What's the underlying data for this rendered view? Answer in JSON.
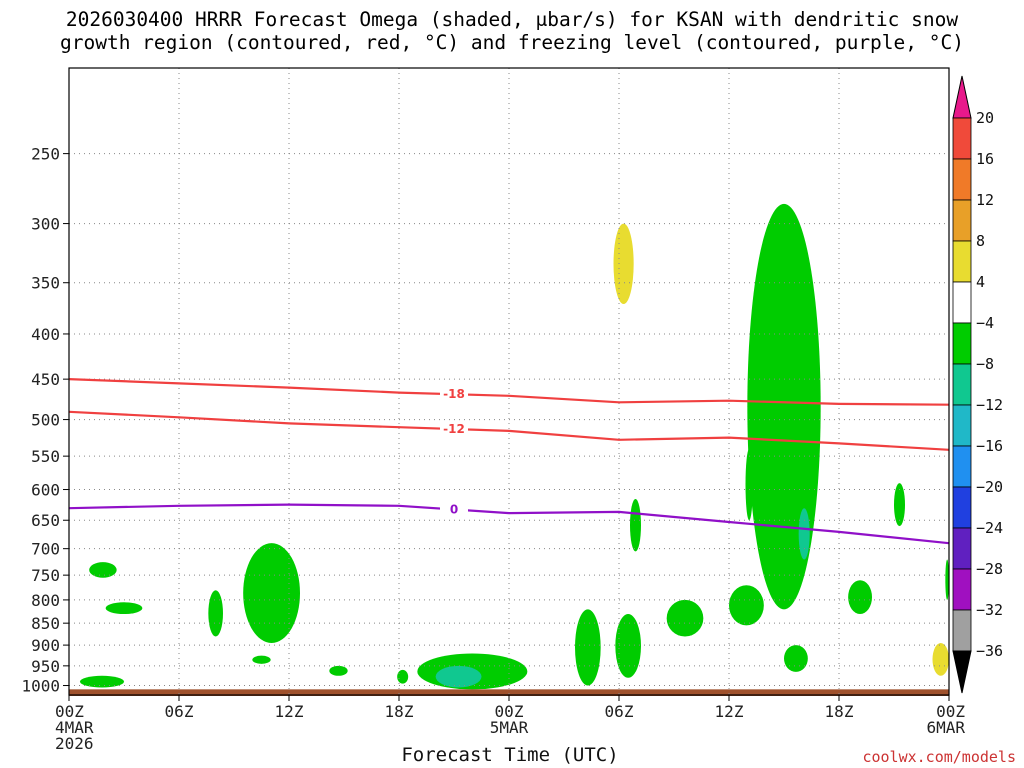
{
  "title_line1": "2026030400 HRRR Forecast Omega (shaded, μbar/s) for KSAN with dendritic snow",
  "title_line2": "growth region (contoured, red, °C) and freezing level (contoured, purple, °C)",
  "credit": "coolwx.com/models",
  "chart_data": {
    "type": "heatmap",
    "title": "2026030400 HRRR Forecast Omega (shaded, μbar/s) for KSAN with dendritic snow growth region (contoured, red, °C) and freezing level (contoured, purple, °C)",
    "xlabel": "Forecast Time (UTC)",
    "ylabel": "",
    "x_unit": "hours from 00Z 4MAR2026",
    "xlim": [
      0,
      48
    ],
    "ylim_hPa": [
      1025,
      200
    ],
    "grid": true,
    "x_ticks": [
      {
        "x": 0,
        "labels": [
          "00Z",
          "4MAR",
          "2026"
        ]
      },
      {
        "x": 6,
        "labels": [
          "06Z"
        ]
      },
      {
        "x": 12,
        "labels": [
          "12Z"
        ]
      },
      {
        "x": 18,
        "labels": [
          "18Z"
        ]
      },
      {
        "x": 24,
        "labels": [
          "00Z",
          "5MAR"
        ]
      },
      {
        "x": 30,
        "labels": [
          "06Z"
        ]
      },
      {
        "x": 36,
        "labels": [
          "12Z"
        ]
      },
      {
        "x": 42,
        "labels": [
          "18Z"
        ]
      },
      {
        "x": 48,
        "labels": [
          "00Z",
          "6MAR"
        ]
      }
    ],
    "y_ticks": [
      250,
      300,
      350,
      400,
      450,
      500,
      550,
      600,
      650,
      700,
      750,
      800,
      850,
      900,
      950,
      1000
    ],
    "colorbar": {
      "unit": "μbar/s",
      "labels": [
        "20",
        "16",
        "12",
        "8",
        "4",
        "−4",
        "−8",
        "−12",
        "−16",
        "−20",
        "−24",
        "−28",
        "−32",
        "−36"
      ],
      "bins": [
        {
          "range": ">20",
          "color": "#e8198b"
        },
        {
          "range": "16 to 20",
          "color": "#f04a3a"
        },
        {
          "range": "12 to 16",
          "color": "#f07a28"
        },
        {
          "range": "8 to 12",
          "color": "#e8a028"
        },
        {
          "range": "4 to 8",
          "color": "#e8dc30"
        },
        {
          "range": "-4 to 4",
          "color": "#ffffff"
        },
        {
          "range": "-8 to -4",
          "color": "#00cc00"
        },
        {
          "range": "-12 to -8",
          "color": "#10c890"
        },
        {
          "range": "-16 to -12",
          "color": "#20b8c8"
        },
        {
          "range": "-20 to -16",
          "color": "#2090f0"
        },
        {
          "range": "-24 to -20",
          "color": "#2040e0"
        },
        {
          "range": "-28 to -24",
          "color": "#6020c0"
        },
        {
          "range": "-32 to -28",
          "color": "#a010c0"
        },
        {
          "range": "-36 to -32",
          "color": "#a0a0a0"
        },
        {
          "range": "<-36",
          "color": "#000000"
        }
      ]
    },
    "series": [
      {
        "name": "-18",
        "kind": "contour",
        "color": "#f04040",
        "x": [
          0,
          6,
          12,
          18,
          24,
          30,
          36,
          42,
          48
        ],
        "y": [
          450,
          455,
          460,
          466,
          470,
          478,
          476,
          480,
          481
        ]
      },
      {
        "name": "-12",
        "kind": "contour",
        "color": "#f04040",
        "x": [
          0,
          6,
          12,
          18,
          24,
          30,
          36,
          42,
          48
        ],
        "y": [
          490,
          497,
          505,
          510,
          515,
          527,
          524,
          532,
          541
        ]
      },
      {
        "name": "0",
        "kind": "contour",
        "color": "#9010c8",
        "x": [
          0,
          6,
          12,
          18,
          24,
          30,
          36,
          42,
          48
        ],
        "y": [
          630,
          626,
          624,
          626,
          638,
          636,
          653,
          670,
          690
        ]
      }
    ],
    "omega_regions": [
      {
        "bin": "-8 to -4",
        "x": [
          1.1,
          2.6
        ],
        "p": [
          725,
          755
        ]
      },
      {
        "bin": "-8 to -4",
        "x": [
          2.0,
          4.0
        ],
        "p": [
          805,
          830
        ]
      },
      {
        "bin": "-8 to -4",
        "x": [
          7.6,
          8.4
        ],
        "p": [
          780,
          880
        ]
      },
      {
        "bin": "-8 to -4",
        "x": [
          9.5,
          12.6
        ],
        "p": [
          690,
          895
        ]
      },
      {
        "bin": "-8 to -4",
        "x": [
          10.0,
          11.0
        ],
        "p": [
          925,
          945
        ]
      },
      {
        "bin": "-8 to -4",
        "x": [
          14.2,
          15.2
        ],
        "p": [
          950,
          975
        ]
      },
      {
        "bin": "-8 to -4",
        "x": [
          17.9,
          18.5
        ],
        "p": [
          960,
          995
        ]
      },
      {
        "bin": "-8 to -4",
        "x": [
          19.0,
          25.0
        ],
        "p": [
          920,
          1010
        ]
      },
      {
        "bin": "-12 to -8",
        "x": [
          20.0,
          22.5
        ],
        "p": [
          950,
          1005
        ]
      },
      {
        "bin": "-8 to -4",
        "x": [
          0.6,
          3.0
        ],
        "p": [
          975,
          1005
        ]
      },
      {
        "bin": "-8 to -4",
        "x": [
          27.6,
          29.0
        ],
        "p": [
          820,
          1000
        ]
      },
      {
        "bin": "-8 to -4",
        "x": [
          29.8,
          31.2
        ],
        "p": [
          830,
          980
        ]
      },
      {
        "bin": "-8 to -4",
        "x": [
          30.6,
          31.2
        ],
        "p": [
          615,
          705
        ]
      },
      {
        "bin": "-8 to -4",
        "x": [
          32.6,
          34.6
        ],
        "p": [
          800,
          880
        ]
      },
      {
        "bin": "4 to 8",
        "x": [
          29.7,
          30.8
        ],
        "p": [
          300,
          370
        ]
      },
      {
        "bin": "-8 to -4",
        "x": [
          36.0,
          37.9
        ],
        "p": [
          770,
          855
        ]
      },
      {
        "bin": "-8 to -4",
        "x": [
          36.9,
          37.3
        ],
        "p": [
          540,
          650
        ]
      },
      {
        "bin": "-8 to -4",
        "x": [
          37.0,
          41.0
        ],
        "p": [
          285,
          820
        ]
      },
      {
        "bin": "-12 to -8",
        "x": [
          39.8,
          40.4
        ],
        "p": [
          630,
          720
        ]
      },
      {
        "bin": "-8 to -4",
        "x": [
          39.0,
          40.3
        ],
        "p": [
          900,
          965
        ]
      },
      {
        "bin": "-8 to -4",
        "x": [
          42.5,
          43.8
        ],
        "p": [
          760,
          830
        ]
      },
      {
        "bin": "-8 to -4",
        "x": [
          45.0,
          45.6
        ],
        "p": [
          590,
          660
        ]
      },
      {
        "bin": "4 to 8",
        "x": [
          47.1,
          48.0
        ],
        "p": [
          895,
          975
        ]
      },
      {
        "bin": "-8 to -4",
        "x": [
          47.8,
          48.0
        ],
        "p": [
          720,
          800
        ]
      }
    ]
  }
}
